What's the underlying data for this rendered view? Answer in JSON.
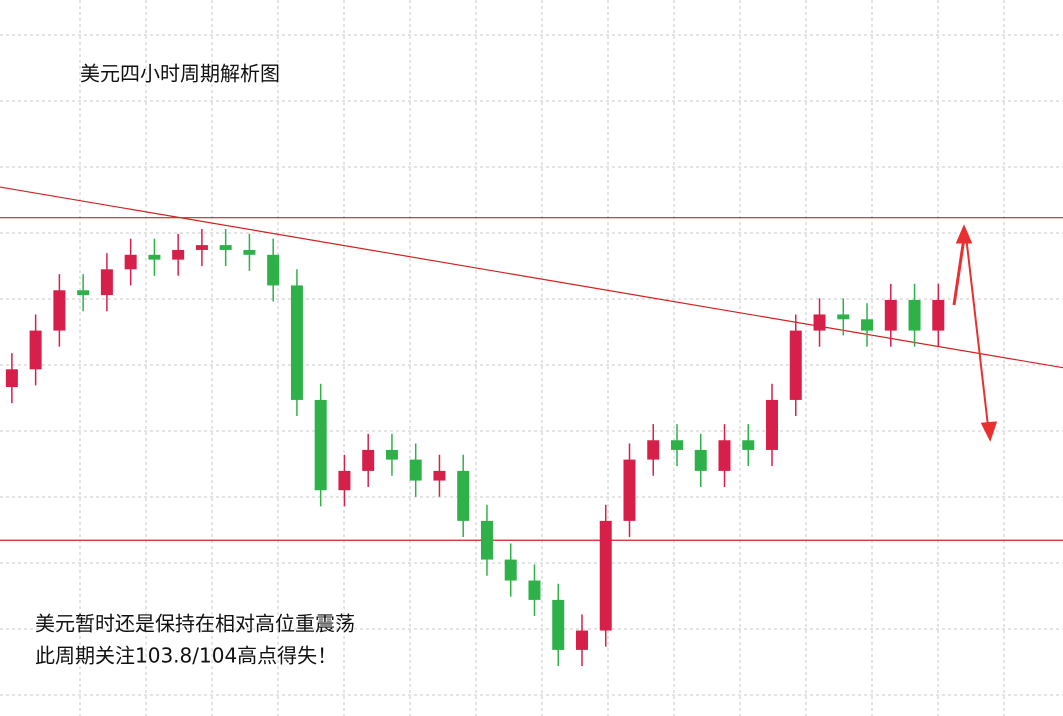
{
  "chart_data": {
    "type": "candlestick",
    "title": "美元四小时周期解析图",
    "annotations": [
      "美元暂时还是保持在相对高位重震荡",
      "此周期关注103.8/104高点得失！"
    ],
    "open": [
      102.95,
      103.06,
      103.3,
      103.55,
      103.52,
      103.68,
      103.77,
      103.74,
      103.8,
      103.83,
      103.8,
      103.77,
      103.58,
      102.87,
      102.31,
      102.43,
      102.56,
      102.5,
      102.37,
      102.43,
      102.12,
      101.88,
      101.75,
      101.63,
      101.32,
      101.44,
      102.12,
      102.5,
      102.62,
      102.56,
      102.43,
      102.62,
      102.56,
      102.87,
      103.3,
      103.4,
      103.37,
      103.3,
      103.49,
      103.3
    ],
    "high": [
      103.16,
      103.4,
      103.65,
      103.65,
      103.78,
      103.87,
      103.87,
      103.9,
      103.93,
      103.93,
      103.9,
      103.87,
      103.68,
      102.97,
      102.53,
      102.66,
      102.66,
      102.6,
      102.53,
      102.53,
      102.22,
      101.98,
      101.85,
      101.73,
      101.54,
      102.22,
      102.6,
      102.72,
      102.72,
      102.66,
      102.72,
      102.72,
      102.97,
      103.4,
      103.5,
      103.5,
      103.47,
      103.59,
      103.59,
      103.59
    ],
    "low": [
      102.85,
      102.96,
      103.2,
      103.42,
      103.42,
      103.58,
      103.64,
      103.64,
      103.7,
      103.7,
      103.67,
      103.48,
      102.77,
      102.21,
      102.21,
      102.33,
      102.4,
      102.27,
      102.27,
      102.02,
      101.78,
      101.65,
      101.53,
      101.22,
      101.22,
      101.34,
      102.02,
      102.4,
      102.46,
      102.33,
      102.33,
      102.46,
      102.46,
      102.77,
      103.2,
      103.27,
      103.2,
      103.2,
      103.2,
      103.2
    ],
    "close": [
      103.06,
      103.3,
      103.55,
      103.52,
      103.68,
      103.77,
      103.74,
      103.8,
      103.83,
      103.8,
      103.77,
      103.58,
      102.87,
      102.31,
      102.43,
      102.56,
      102.5,
      102.37,
      102.43,
      102.12,
      101.88,
      101.75,
      101.63,
      101.32,
      101.44,
      102.12,
      102.5,
      102.62,
      102.56,
      102.43,
      102.62,
      102.56,
      102.87,
      103.3,
      103.4,
      103.37,
      103.3,
      103.49,
      103.3,
      103.49
    ],
    "up_color": "#d6204a",
    "down_color": "#2fb14a",
    "levels": [
      104,
      102
    ],
    "level_color": "#d42020",
    "trendline": {
      "x": [
        -0.5,
        44.25
      ],
      "y": [
        104.19,
        103.07
      ]
    },
    "xlim": [
      -0.5,
      44.25
    ],
    "ylim": [
      100.91,
      105.35
    ],
    "grid": true
  }
}
